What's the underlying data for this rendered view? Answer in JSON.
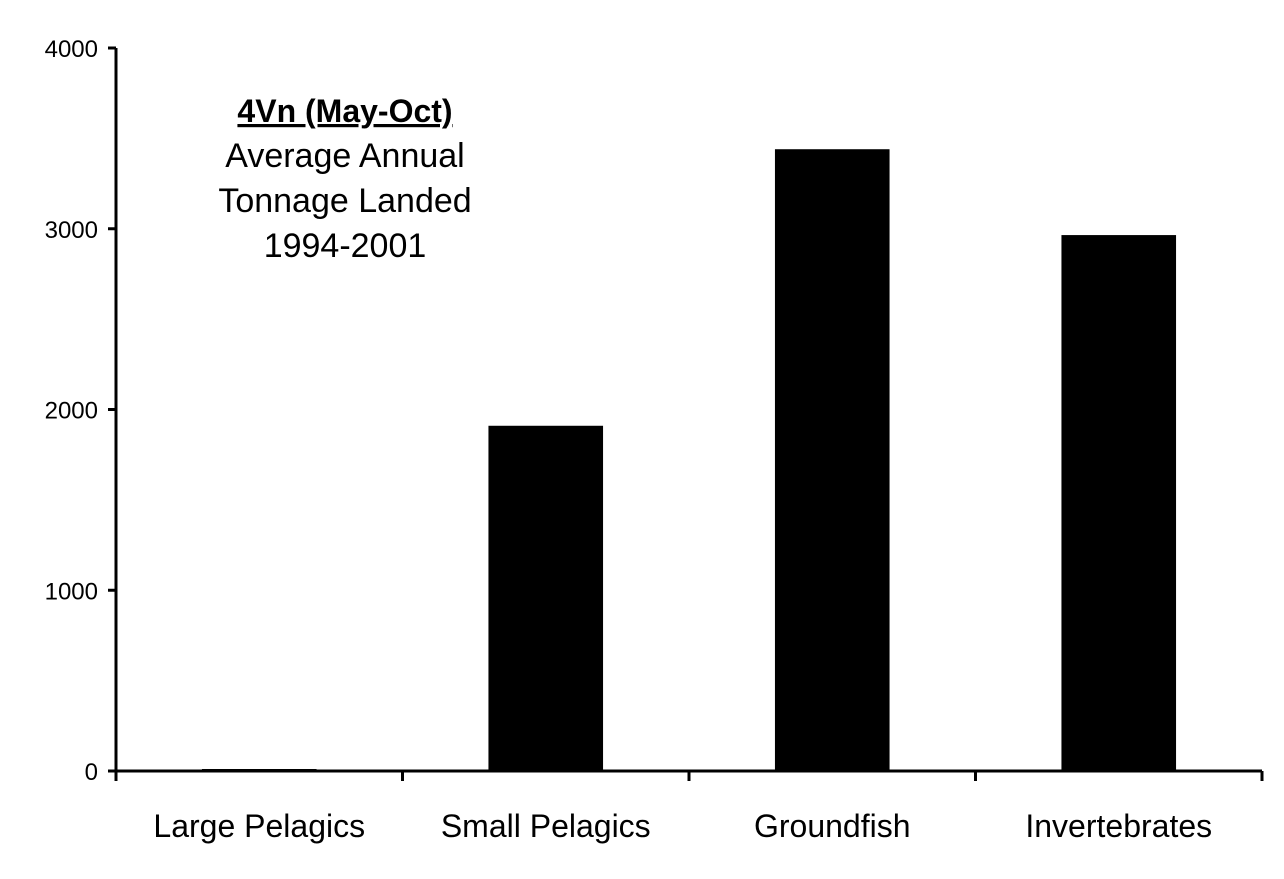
{
  "chart_data": {
    "type": "bar",
    "title": "4Vn (May-Oct)",
    "subtitle_lines": [
      "Average Annual",
      "Tonnage Landed",
      "1994-2001"
    ],
    "categories": [
      "Large Pelagics",
      "Small Pelagics",
      "Groundfish",
      "Invertebrates"
    ],
    "values": [
      5,
      1910,
      3440,
      2965
    ],
    "xlabel": "",
    "ylabel": "",
    "ylim": [
      0,
      4000
    ],
    "yticks": [
      0,
      1000,
      2000,
      3000,
      4000
    ],
    "grid": false,
    "legend": "none",
    "bar_color": "#000000"
  }
}
